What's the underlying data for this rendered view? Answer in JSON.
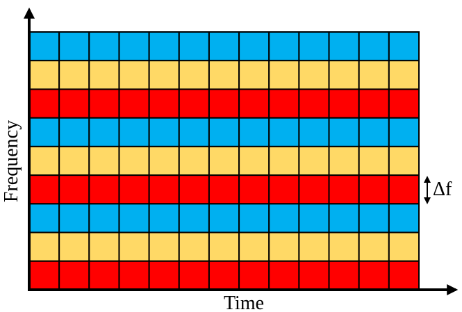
{
  "x_axis_label": "Time",
  "y_axis_label": "Frequency",
  "spacing_label": "Δf",
  "grid": {
    "columns": 13,
    "row_colors_top_to_bottom": [
      "blue",
      "yellow",
      "red",
      "blue",
      "yellow",
      "red",
      "blue",
      "yellow",
      "red"
    ]
  },
  "colors": {
    "blue": "#00b0f0",
    "yellow": "#ffd966",
    "red": "#ff0000",
    "grid_line": "#000000",
    "axis": "#000000"
  }
}
